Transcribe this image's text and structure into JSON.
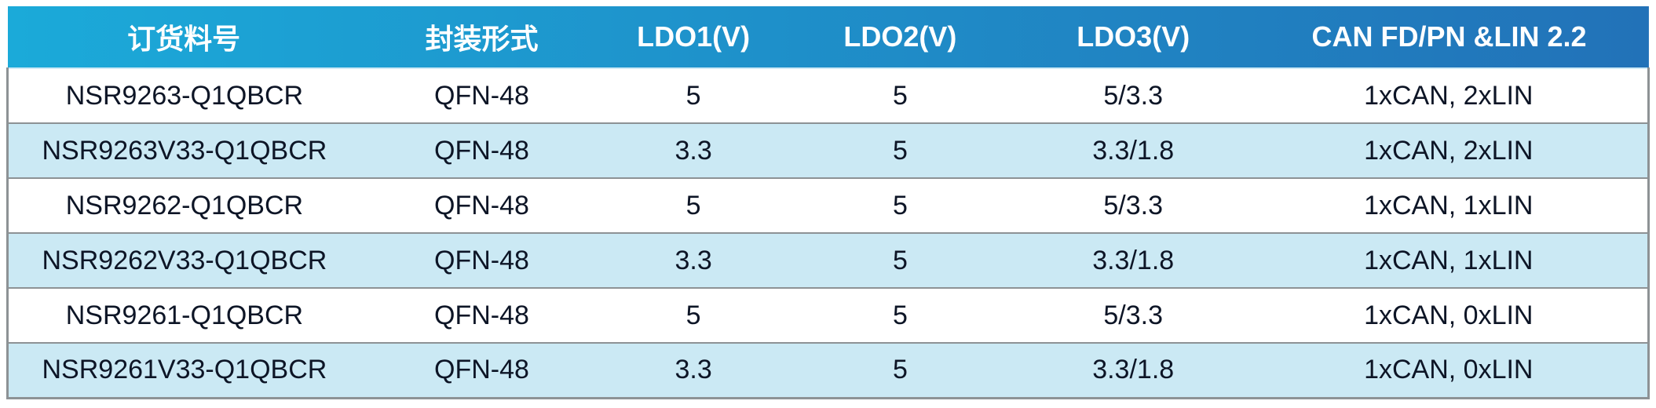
{
  "table": {
    "columns": [
      {
        "label": "订货料号"
      },
      {
        "label": "封装形式"
      },
      {
        "label": "LDO1(V)"
      },
      {
        "label": "LDO2(V)"
      },
      {
        "label": "LDO3(V)"
      },
      {
        "label": "CAN FD/PN &LIN 2.2"
      }
    ],
    "rows": [
      [
        "NSR9263-Q1QBCR",
        "QFN-48",
        "5",
        "5",
        "5/3.3",
        "1xCAN, 2xLIN"
      ],
      [
        "NSR9263V33-Q1QBCR",
        "QFN-48",
        "3.3",
        "5",
        "3.3/1.8",
        "1xCAN, 2xLIN"
      ],
      [
        "NSR9262-Q1QBCR",
        "QFN-48",
        "5",
        "5",
        "5/3.3",
        "1xCAN, 1xLIN"
      ],
      [
        "NSR9262V33-Q1QBCR",
        "QFN-48",
        "3.3",
        "5",
        "3.3/1.8",
        "1xCAN, 1xLIN"
      ],
      [
        "NSR9261-Q1QBCR",
        "QFN-48",
        "5",
        "5",
        "5/3.3",
        "1xCAN, 0xLIN"
      ],
      [
        "NSR9261V33-Q1QBCR",
        "QFN-48",
        "3.3",
        "5",
        "3.3/1.8",
        "1xCAN, 0xLIN"
      ]
    ]
  },
  "colors": {
    "header_gradient_start": "#1baad9",
    "header_gradient_end": "#2272b8",
    "header_text": "#ffffff",
    "row_bg": "#ffffff",
    "row_alt_bg": "#cbe9f4",
    "cell_text": "#0d1526",
    "border_gray": "#8d9295"
  }
}
